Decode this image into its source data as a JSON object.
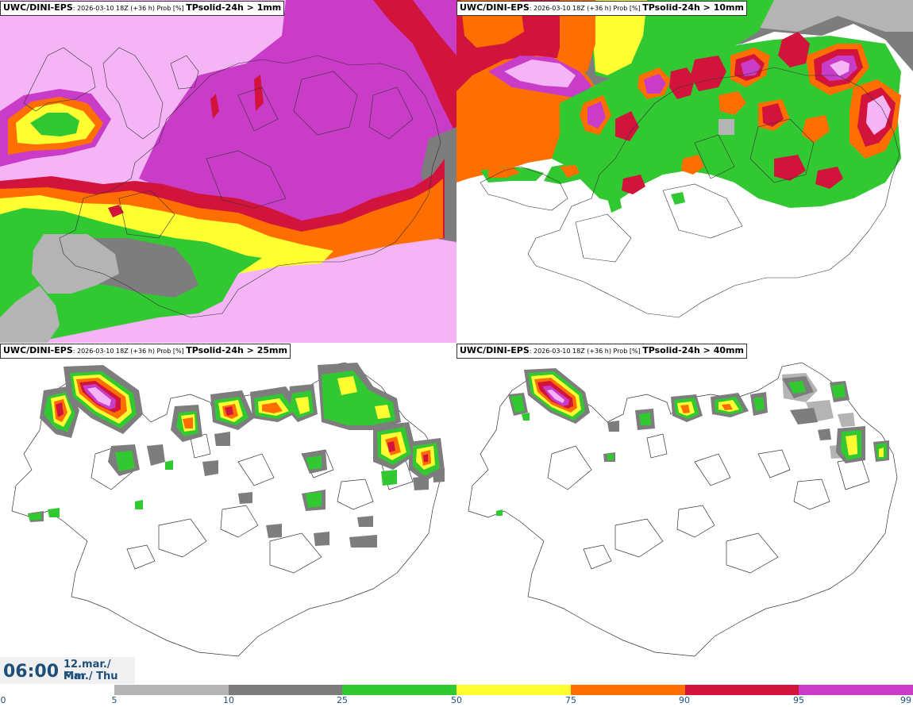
{
  "panels": [
    {
      "model": "UWC/DINI-EPS",
      "meta": ": 2026-03-10 18Z (+36 h) Prob [%] ",
      "param": "TPsolid-24h > 1mm"
    },
    {
      "model": "UWC/DINI-EPS",
      "meta": ": 2026-03-10 18Z (+36 h) Prob [%] ",
      "param": "TPsolid-24h > 10mm"
    },
    {
      "model": "UWC/DINI-EPS",
      "meta": ": 2026-03-10 18Z (+36 h) Prob [%] ",
      "param": "TPsolid-24h > 25mm"
    },
    {
      "model": "UWC/DINI-EPS",
      "meta": ": 2026-03-10 18Z (+36 h) Prob [%] ",
      "param": "TPsolid-24h > 40mm"
    }
  ],
  "valid_time": {
    "time": "06:00",
    "date": "12.mar./ Mar",
    "day": "Fim./ Thu"
  },
  "colorbar": {
    "ticks": [
      "0",
      "5",
      "10",
      "25",
      "50",
      "75",
      "90",
      "95",
      "99"
    ],
    "colors": [
      "#ffffff",
      "#b4b4b4",
      "#7d7d7d",
      "#32c832",
      "#ffff32",
      "#ff6e00",
      "#d2143c",
      "#c83cc8",
      "#f5b4f5"
    ]
  }
}
